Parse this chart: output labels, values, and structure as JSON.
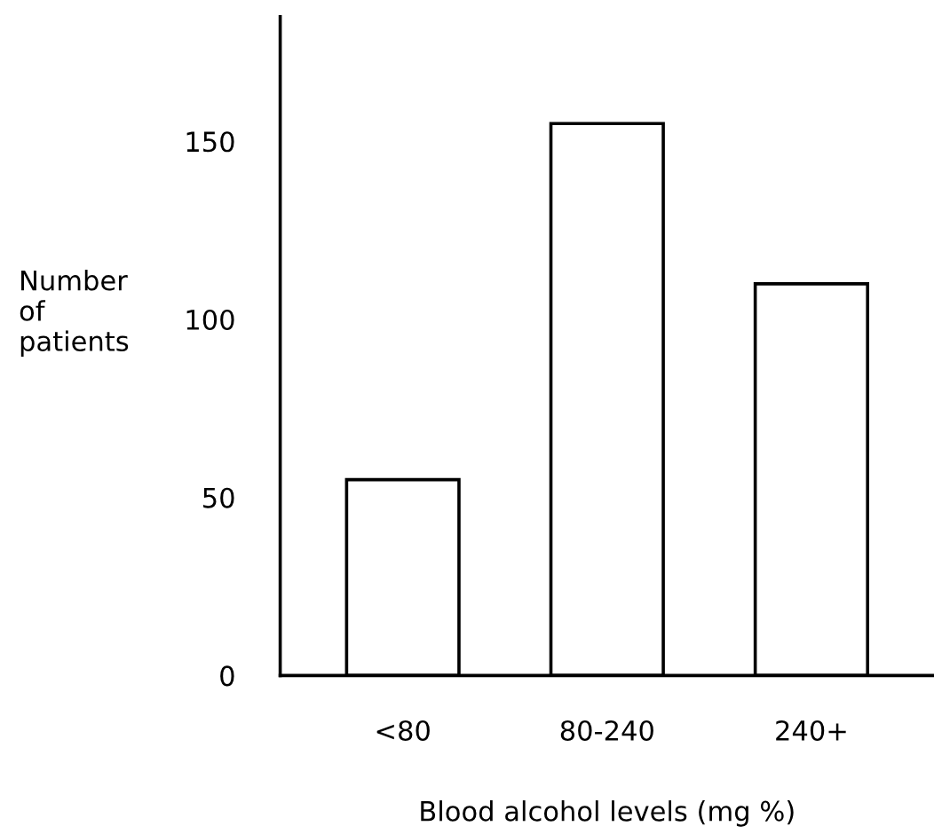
{
  "chart_data": {
    "type": "bar",
    "xlabel": "Blood alcohol levels (mg %)",
    "ylabel": "Number\nof\npatients",
    "categories": [
      "<80",
      "80-240",
      "240+"
    ],
    "values": [
      55,
      155,
      110
    ],
    "color": "#ffffff",
    "ylim": [
      0,
      185
    ],
    "yticks": [
      0,
      50,
      100,
      150
    ],
    "grid": false,
    "legend": false
  }
}
